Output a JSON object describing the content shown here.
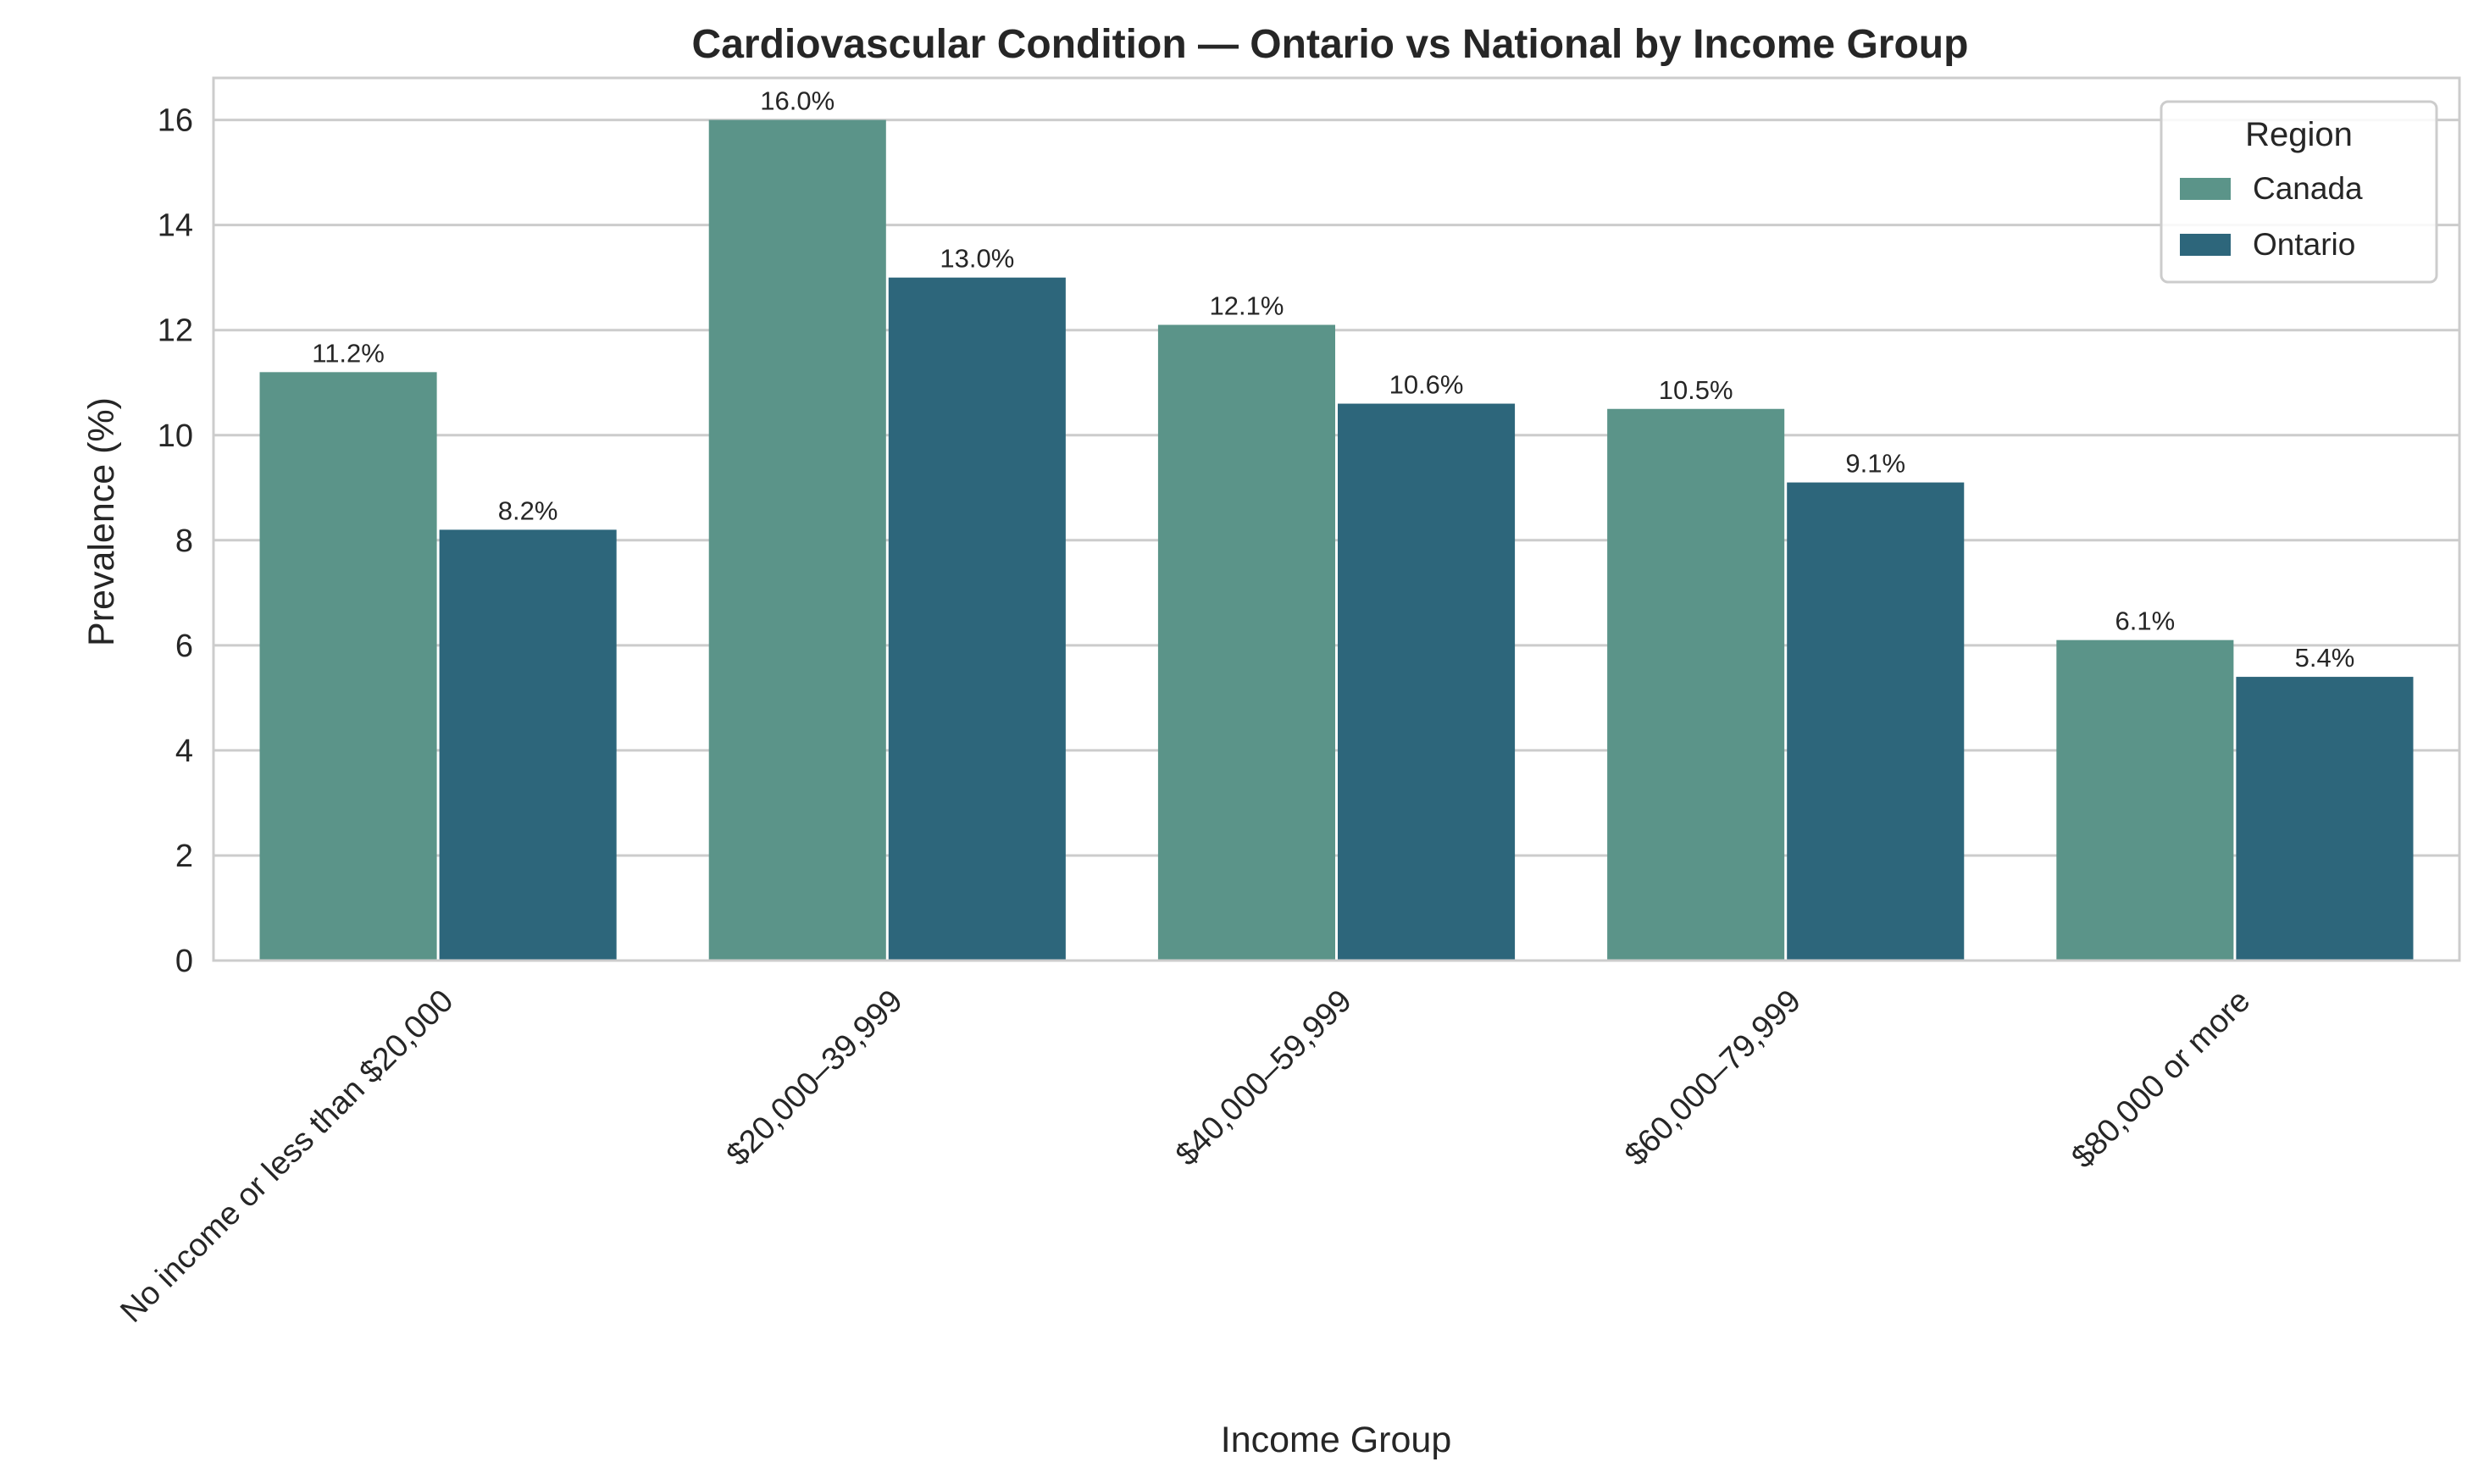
{
  "chart_data": {
    "type": "bar",
    "title": "Cardiovascular Condition — Ontario vs National by Income Group",
    "xlabel": "Income Group",
    "ylabel": "Prevalence (%)",
    "ylim": [
      0,
      16.8
    ],
    "yticks": [
      0,
      2,
      4,
      6,
      8,
      10,
      12,
      14,
      16
    ],
    "grid": "horizontal",
    "legend_title": "Region",
    "legend_position": "top-right",
    "categories": [
      "No income or less than $20,000",
      "$20,000–39,999",
      "$40,000–59,999",
      "$60,000–79,999",
      "$80,000 or more"
    ],
    "series": [
      {
        "name": "Canada",
        "color": "#5b9489",
        "values": [
          11.2,
          16.0,
          12.1,
          10.5,
          6.1
        ],
        "labels": [
          "11.2%",
          "16.0%",
          "12.1%",
          "10.5%",
          "6.1%"
        ]
      },
      {
        "name": "Ontario",
        "color": "#2d667b",
        "values": [
          8.2,
          13.0,
          10.6,
          9.1,
          5.4
        ],
        "labels": [
          "8.2%",
          "13.0%",
          "10.6%",
          "9.1%",
          "5.4%"
        ]
      }
    ]
  }
}
